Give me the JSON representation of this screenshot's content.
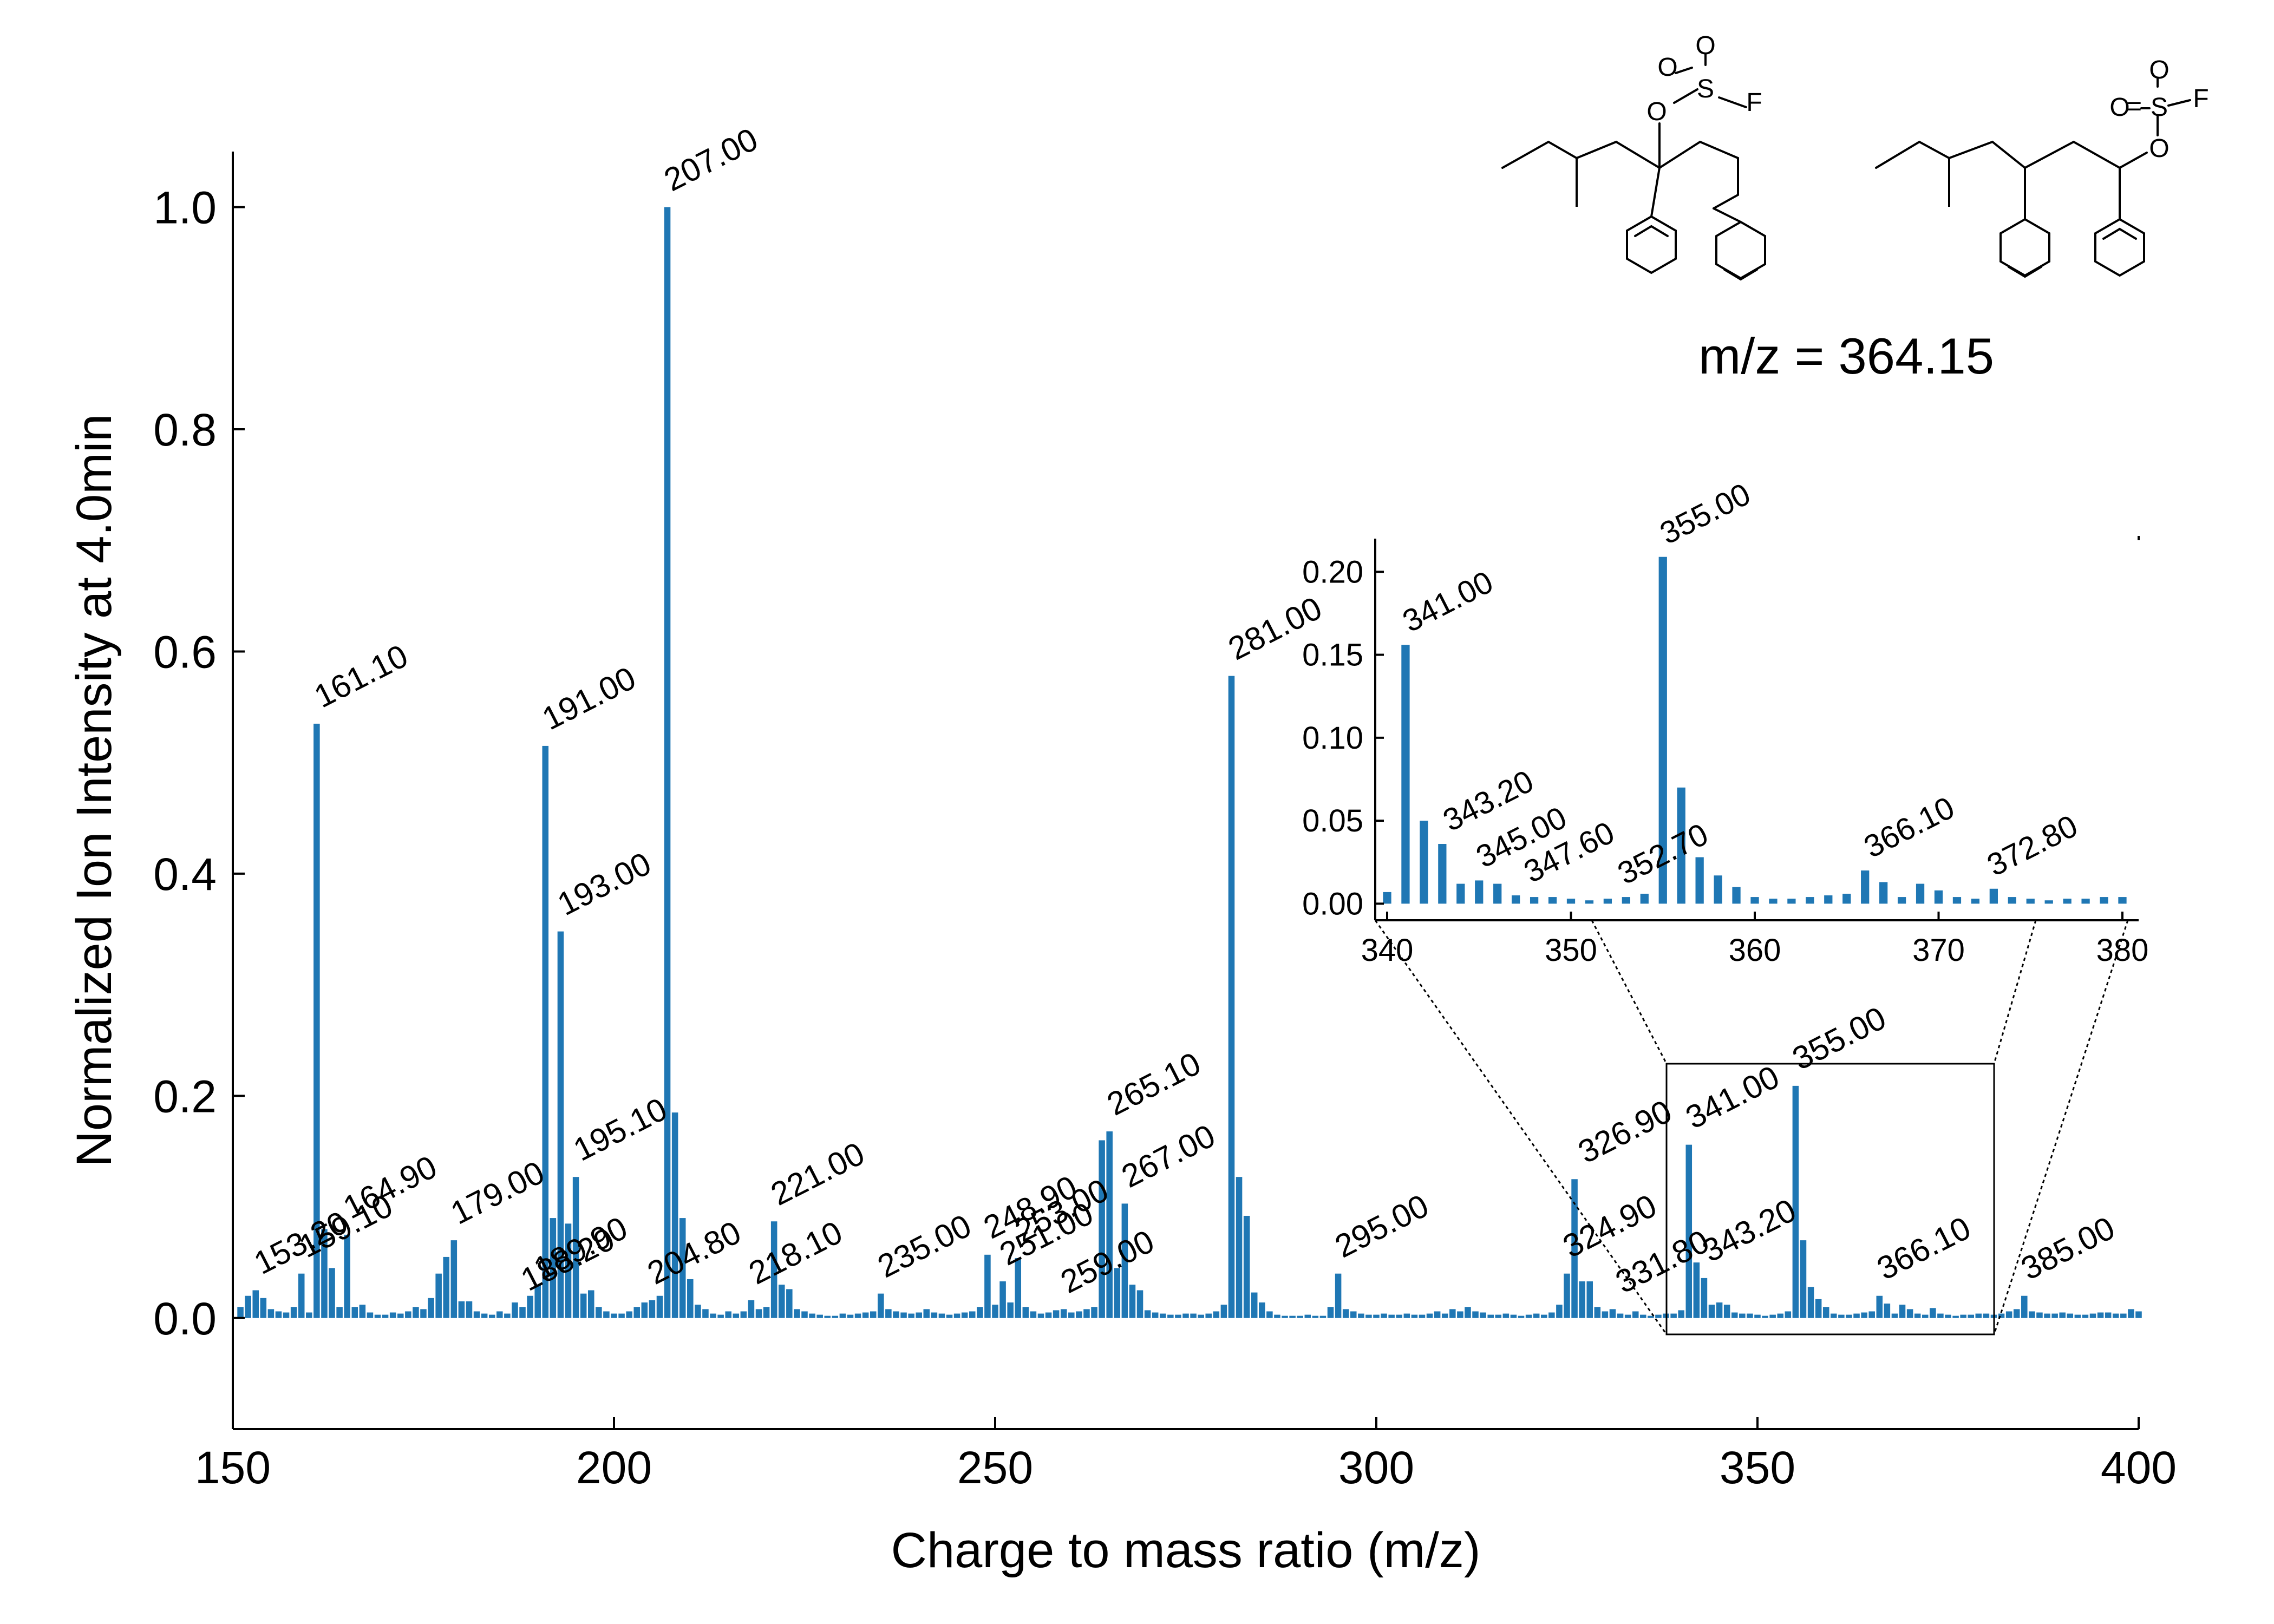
{
  "chart_data": {
    "type": "bar",
    "title": "",
    "xlabel": "Charge to mass ratio (m/z)",
    "ylabel": "Normalized Ion Intensity at 4.0min",
    "xlim": [
      150,
      400
    ],
    "ylim": [
      -0.1,
      1.05
    ],
    "xticks": [
      "150",
      "200",
      "250",
      "300",
      "350",
      "400"
    ],
    "yticks": [
      "0.0",
      "0.2",
      "0.4",
      "0.6",
      "0.8",
      "1.0"
    ],
    "color": "#1f77b4",
    "grid": false,
    "bars": [
      [
        151,
        0.01
      ],
      [
        152,
        0.02
      ],
      [
        153,
        0.025
      ],
      [
        154,
        0.018
      ],
      [
        155,
        0.008
      ],
      [
        156,
        0.006
      ],
      [
        157,
        0.005
      ],
      [
        158,
        0.01
      ],
      [
        159,
        0.04
      ],
      [
        160,
        0.005
      ],
      [
        161,
        0.535
      ],
      [
        162,
        0.08
      ],
      [
        163,
        0.045
      ],
      [
        164,
        0.01
      ],
      [
        165,
        0.075
      ],
      [
        166,
        0.01
      ],
      [
        167,
        0.012
      ],
      [
        168,
        0.005
      ],
      [
        169,
        0.003
      ],
      [
        170,
        0.003
      ],
      [
        171,
        0.005
      ],
      [
        172,
        0.004
      ],
      [
        173,
        0.006
      ],
      [
        174,
        0.01
      ],
      [
        175,
        0.008
      ],
      [
        176,
        0.018
      ],
      [
        177,
        0.04
      ],
      [
        178,
        0.055
      ],
      [
        179,
        0.07
      ],
      [
        180,
        0.015
      ],
      [
        181,
        0.015
      ],
      [
        182,
        0.006
      ],
      [
        183,
        0.004
      ],
      [
        184,
        0.003
      ],
      [
        185,
        0.006
      ],
      [
        186,
        0.004
      ],
      [
        187,
        0.014
      ],
      [
        188,
        0.01
      ],
      [
        189,
        0.02
      ],
      [
        190,
        0.03
      ],
      [
        191,
        0.515
      ],
      [
        192,
        0.09
      ],
      [
        193,
        0.348
      ],
      [
        194,
        0.085
      ],
      [
        195,
        0.127
      ],
      [
        196,
        0.022
      ],
      [
        197,
        0.025
      ],
      [
        198,
        0.01
      ],
      [
        199,
        0.006
      ],
      [
        200,
        0.004
      ],
      [
        201,
        0.004
      ],
      [
        202,
        0.006
      ],
      [
        203,
        0.01
      ],
      [
        204,
        0.014
      ],
      [
        205,
        0.016
      ],
      [
        206,
        0.02
      ],
      [
        207,
        1.0
      ],
      [
        208,
        0.185
      ],
      [
        209,
        0.09
      ],
      [
        210,
        0.035
      ],
      [
        211,
        0.012
      ],
      [
        212,
        0.008
      ],
      [
        213,
        0.004
      ],
      [
        214,
        0.003
      ],
      [
        215,
        0.006
      ],
      [
        216,
        0.004
      ],
      [
        217,
        0.006
      ],
      [
        218,
        0.016
      ],
      [
        219,
        0.008
      ],
      [
        220,
        0.01
      ],
      [
        221,
        0.087
      ],
      [
        222,
        0.03
      ],
      [
        223,
        0.026
      ],
      [
        224,
        0.008
      ],
      [
        225,
        0.006
      ],
      [
        226,
        0.004
      ],
      [
        227,
        0.003
      ],
      [
        228,
        0.002
      ],
      [
        229,
        0.002
      ],
      [
        230,
        0.004
      ],
      [
        231,
        0.003
      ],
      [
        232,
        0.004
      ],
      [
        233,
        0.005
      ],
      [
        234,
        0.006
      ],
      [
        235,
        0.022
      ],
      [
        236,
        0.008
      ],
      [
        237,
        0.006
      ],
      [
        238,
        0.005
      ],
      [
        239,
        0.004
      ],
      [
        240,
        0.005
      ],
      [
        241,
        0.008
      ],
      [
        242,
        0.005
      ],
      [
        243,
        0.004
      ],
      [
        244,
        0.003
      ],
      [
        245,
        0.004
      ],
      [
        246,
        0.005
      ],
      [
        247,
        0.006
      ],
      [
        248,
        0.01
      ],
      [
        249,
        0.057
      ],
      [
        250,
        0.012
      ],
      [
        251,
        0.033
      ],
      [
        252,
        0.014
      ],
      [
        253,
        0.054
      ],
      [
        254,
        0.01
      ],
      [
        255,
        0.006
      ],
      [
        256,
        0.004
      ],
      [
        257,
        0.005
      ],
      [
        258,
        0.007
      ],
      [
        259,
        0.008
      ],
      [
        260,
        0.005
      ],
      [
        261,
        0.006
      ],
      [
        262,
        0.008
      ],
      [
        263,
        0.01
      ],
      [
        264,
        0.16
      ],
      [
        265,
        0.168
      ],
      [
        266,
        0.045
      ],
      [
        267,
        0.103
      ],
      [
        268,
        0.03
      ],
      [
        269,
        0.025
      ],
      [
        270,
        0.007
      ],
      [
        271,
        0.005
      ],
      [
        272,
        0.004
      ],
      [
        273,
        0.003
      ],
      [
        274,
        0.003
      ],
      [
        275,
        0.004
      ],
      [
        276,
        0.004
      ],
      [
        277,
        0.003
      ],
      [
        278,
        0.004
      ],
      [
        279,
        0.006
      ],
      [
        280,
        0.012
      ],
      [
        281,
        0.578
      ],
      [
        282,
        0.127
      ],
      [
        283,
        0.092
      ],
      [
        284,
        0.023
      ],
      [
        285,
        0.014
      ],
      [
        286,
        0.006
      ],
      [
        287,
        0.003
      ],
      [
        288,
        0.002
      ],
      [
        289,
        0.002
      ],
      [
        290,
        0.002
      ],
      [
        291,
        0.003
      ],
      [
        292,
        0.002
      ],
      [
        293,
        0.002
      ],
      [
        294,
        0.01
      ],
      [
        295,
        0.04
      ],
      [
        296,
        0.008
      ],
      [
        297,
        0.006
      ],
      [
        298,
        0.004
      ],
      [
        299,
        0.003
      ],
      [
        300,
        0.003
      ],
      [
        301,
        0.004
      ],
      [
        302,
        0.003
      ],
      [
        303,
        0.003
      ],
      [
        304,
        0.004
      ],
      [
        305,
        0.003
      ],
      [
        306,
        0.003
      ],
      [
        307,
        0.004
      ],
      [
        308,
        0.006
      ],
      [
        309,
        0.004
      ],
      [
        310,
        0.008
      ],
      [
        311,
        0.006
      ],
      [
        312,
        0.01
      ],
      [
        313,
        0.006
      ],
      [
        314,
        0.005
      ],
      [
        315,
        0.003
      ],
      [
        316,
        0.003
      ],
      [
        317,
        0.004
      ],
      [
        318,
        0.003
      ],
      [
        319,
        0.002
      ],
      [
        320,
        0.003
      ],
      [
        321,
        0.004
      ],
      [
        322,
        0.003
      ],
      [
        323,
        0.005
      ],
      [
        324,
        0.012
      ],
      [
        325,
        0.04
      ],
      [
        326,
        0.125
      ],
      [
        327,
        0.033
      ],
      [
        328,
        0.033
      ],
      [
        329,
        0.01
      ],
      [
        330,
        0.006
      ],
      [
        331,
        0.008
      ],
      [
        332,
        0.004
      ],
      [
        333,
        0.003
      ],
      [
        334,
        0.006
      ],
      [
        335,
        0.003
      ],
      [
        336,
        0.002
      ],
      [
        337,
        0.003
      ],
      [
        338,
        0.004
      ],
      [
        339,
        0.004
      ],
      [
        340,
        0.007
      ],
      [
        341,
        0.156
      ],
      [
        342,
        0.05
      ],
      [
        343,
        0.036
      ],
      [
        344,
        0.012
      ],
      [
        345,
        0.014
      ],
      [
        346,
        0.012
      ],
      [
        347,
        0.005
      ],
      [
        348,
        0.004
      ],
      [
        349,
        0.004
      ],
      [
        350,
        0.003
      ],
      [
        351,
        0.002
      ],
      [
        352,
        0.003
      ],
      [
        353,
        0.004
      ],
      [
        354,
        0.006
      ],
      [
        355,
        0.209
      ],
      [
        356,
        0.07
      ],
      [
        357,
        0.028
      ],
      [
        358,
        0.017
      ],
      [
        359,
        0.01
      ],
      [
        360,
        0.004
      ],
      [
        361,
        0.003
      ],
      [
        362,
        0.003
      ],
      [
        363,
        0.004
      ],
      [
        364,
        0.005
      ],
      [
        365,
        0.006
      ],
      [
        366,
        0.02
      ],
      [
        367,
        0.013
      ],
      [
        368,
        0.004
      ],
      [
        369,
        0.012
      ],
      [
        370,
        0.008
      ],
      [
        371,
        0.004
      ],
      [
        372,
        0.003
      ],
      [
        373,
        0.009
      ],
      [
        374,
        0.004
      ],
      [
        375,
        0.003
      ],
      [
        376,
        0.002
      ],
      [
        377,
        0.003
      ],
      [
        378,
        0.003
      ],
      [
        379,
        0.004
      ],
      [
        380,
        0.004
      ],
      [
        381,
        0.003
      ],
      [
        382,
        0.004
      ],
      [
        383,
        0.006
      ],
      [
        384,
        0.008
      ],
      [
        385,
        0.02
      ],
      [
        386,
        0.006
      ],
      [
        387,
        0.005
      ],
      [
        388,
        0.004
      ],
      [
        389,
        0.004
      ],
      [
        390,
        0.005
      ],
      [
        391,
        0.004
      ],
      [
        392,
        0.003
      ],
      [
        393,
        0.003
      ],
      [
        394,
        0.004
      ],
      [
        395,
        0.005
      ],
      [
        396,
        0.005
      ],
      [
        397,
        0.004
      ],
      [
        398,
        0.004
      ],
      [
        399,
        0.008
      ],
      [
        400,
        0.006
      ]
    ],
    "annotations": [
      {
        "x": 161.1,
        "y": 0.535,
        "label": "161.10"
      },
      {
        "x": 153.2,
        "y": 0.025,
        "label": "153.20"
      },
      {
        "x": 159.1,
        "y": 0.04,
        "label": "159.10"
      },
      {
        "x": 164.9,
        "y": 0.075,
        "label": "164.90"
      },
      {
        "x": 179.0,
        "y": 0.07,
        "label": "179.00"
      },
      {
        "x": 189.9,
        "y": 0.02,
        "label": "189.90"
      },
      {
        "x": 188.2,
        "y": 0.01,
        "label": "188.20"
      },
      {
        "x": 191.0,
        "y": 0.515,
        "label": "191.00"
      },
      {
        "x": 193.0,
        "y": 0.348,
        "label": "193.00"
      },
      {
        "x": 195.1,
        "y": 0.127,
        "label": "195.10"
      },
      {
        "x": 207.0,
        "y": 1.0,
        "label": "207.00"
      },
      {
        "x": 204.8,
        "y": 0.016,
        "label": "204.80"
      },
      {
        "x": 221.0,
        "y": 0.087,
        "label": "221.00"
      },
      {
        "x": 218.1,
        "y": 0.016,
        "label": "218.10"
      },
      {
        "x": 235.0,
        "y": 0.022,
        "label": "235.00"
      },
      {
        "x": 248.9,
        "y": 0.057,
        "label": "248.90"
      },
      {
        "x": 253.0,
        "y": 0.054,
        "label": "253.00"
      },
      {
        "x": 251.0,
        "y": 0.033,
        "label": "251.00"
      },
      {
        "x": 259.0,
        "y": 0.008,
        "label": "259.00"
      },
      {
        "x": 265.1,
        "y": 0.168,
        "label": "265.10"
      },
      {
        "x": 267.0,
        "y": 0.103,
        "label": "267.00"
      },
      {
        "x": 281.0,
        "y": 0.578,
        "label": "281.00"
      },
      {
        "x": 295.0,
        "y": 0.04,
        "label": "295.00"
      },
      {
        "x": 326.9,
        "y": 0.125,
        "label": "326.90"
      },
      {
        "x": 324.9,
        "y": 0.04,
        "label": "324.90"
      },
      {
        "x": 331.8,
        "y": 0.008,
        "label": "331.80"
      },
      {
        "x": 341.0,
        "y": 0.156,
        "label": "341.00"
      },
      {
        "x": 343.2,
        "y": 0.036,
        "label": "343.20"
      },
      {
        "x": 355.0,
        "y": 0.209,
        "label": "355.00"
      },
      {
        "x": 366.1,
        "y": 0.02,
        "label": "366.10"
      },
      {
        "x": 385.0,
        "y": 0.02,
        "label": "385.00"
      }
    ],
    "inset": {
      "xlim": [
        340,
        380
      ],
      "ylim": [
        -0.01,
        0.22
      ],
      "xticks": [
        "340",
        "350",
        "360",
        "370",
        "380"
      ],
      "yticks": [
        "0.00",
        "0.05",
        "0.10",
        "0.15",
        "0.20"
      ],
      "annotations": [
        {
          "x": 341.0,
          "y": 0.156,
          "label": "341.00"
        },
        {
          "x": 343.2,
          "y": 0.036,
          "label": "343.20"
        },
        {
          "x": 345.0,
          "y": 0.014,
          "label": "345.00"
        },
        {
          "x": 347.6,
          "y": 0.005,
          "label": "347.60"
        },
        {
          "x": 352.7,
          "y": 0.004,
          "label": "352.70"
        },
        {
          "x": 355.0,
          "y": 0.209,
          "label": "355.00"
        },
        {
          "x": 366.1,
          "y": 0.02,
          "label": "366.10"
        },
        {
          "x": 372.8,
          "y": 0.009,
          "label": "372.80"
        }
      ]
    },
    "mz_text": "m/z = 364.15"
  },
  "molecule_text": {
    "o": "O",
    "s": "S",
    "f": "F",
    "eq": "="
  }
}
